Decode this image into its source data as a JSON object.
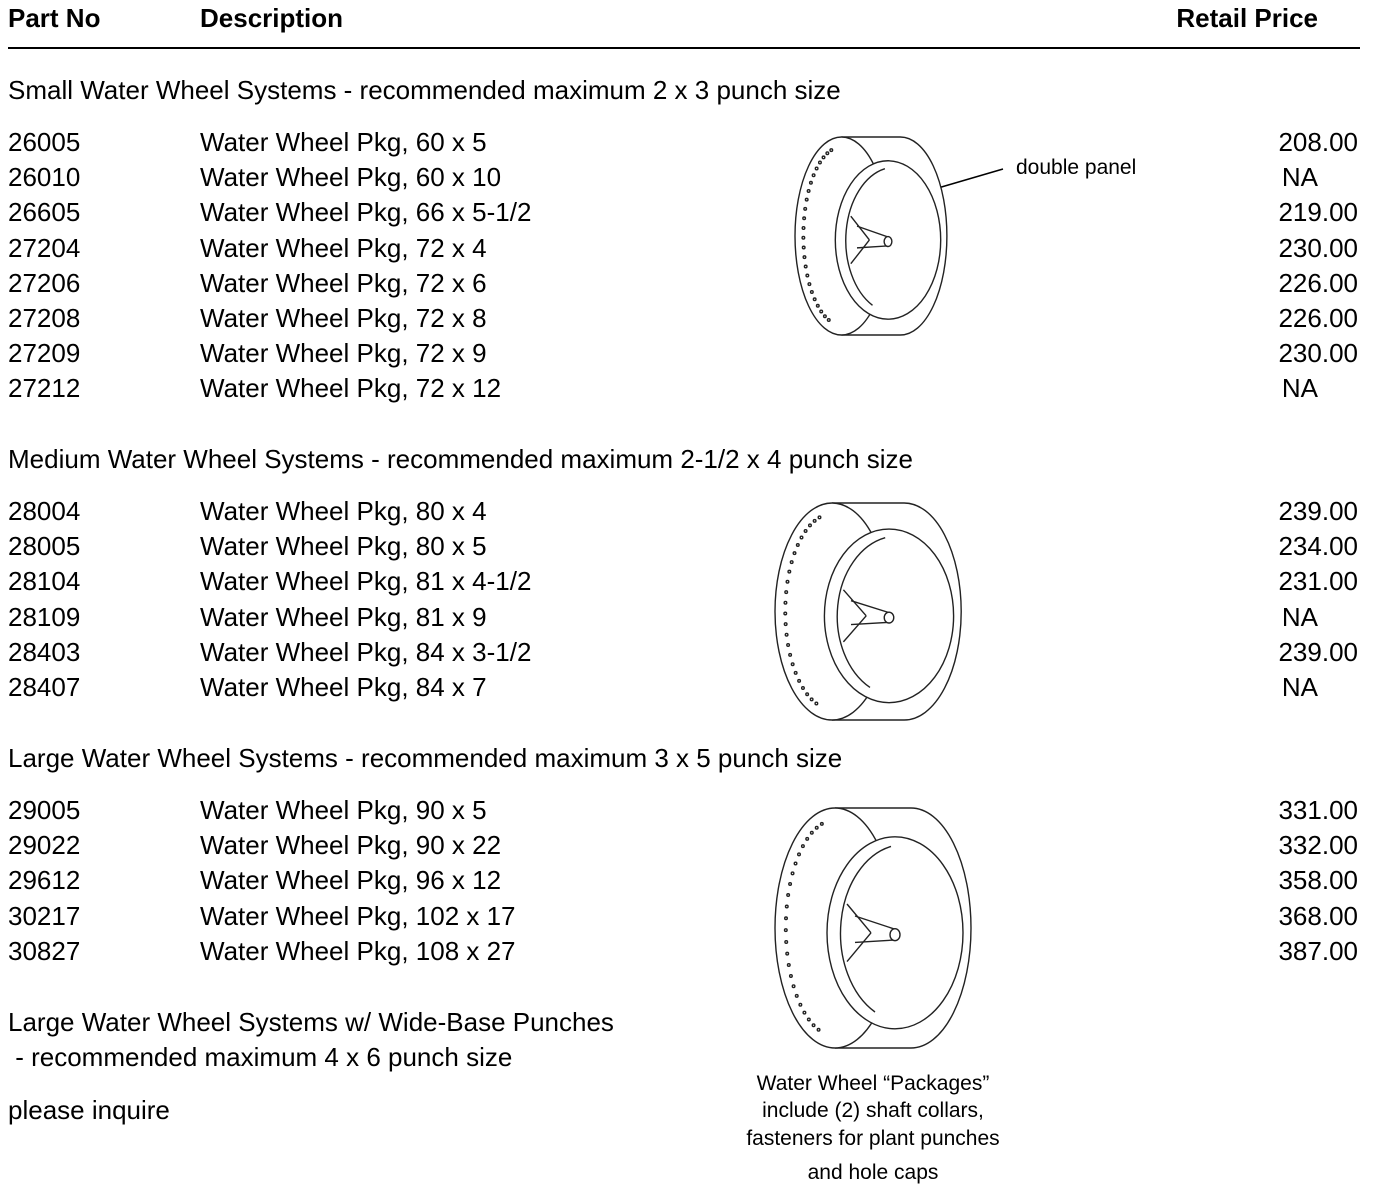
{
  "header": {
    "part_no": "Part No",
    "description": "Description",
    "retail_price": "Retail Price"
  },
  "sections": [
    {
      "title": "Small Water Wheel Systems - recommended maximum 2 x 3 punch size",
      "rows": [
        [
          "26005",
          "Water Wheel Pkg, 60 x 5",
          "208.00"
        ],
        [
          "26010",
          "Water Wheel Pkg, 60 x 10",
          "NA"
        ],
        [
          "26605",
          "Water Wheel Pkg, 66 x 5-1/2",
          "219.00"
        ],
        [
          "27204",
          "Water Wheel Pkg, 72 x 4",
          "230.00"
        ],
        [
          "27206",
          "Water Wheel Pkg, 72 x 6",
          "226.00"
        ],
        [
          "27208",
          "Water Wheel Pkg, 72 x 8",
          "226.00"
        ],
        [
          "27209",
          "Water Wheel Pkg, 72 x 9",
          "230.00"
        ],
        [
          "27212",
          "Water Wheel Pkg, 72 x 12",
          "NA"
        ]
      ]
    },
    {
      "title": "Medium Water Wheel Systems - recommended maximum 2-1/2 x 4 punch size",
      "rows": [
        [
          "28004",
          "Water Wheel Pkg, 80 x 4",
          "239.00"
        ],
        [
          "28005",
          "Water Wheel Pkg, 80 x 5",
          "234.00"
        ],
        [
          "28104",
          "Water Wheel Pkg, 81 x 4-1/2",
          "231.00"
        ],
        [
          "28109",
          "Water Wheel Pkg, 81 x 9",
          "NA"
        ],
        [
          "28403",
          "Water Wheel Pkg, 84 x 3-1/2",
          "239.00"
        ],
        [
          "28407",
          "Water Wheel Pkg, 84 x 7",
          "NA"
        ]
      ]
    },
    {
      "title": "Large Water Wheel Systems - recommended maximum 3 x 5 punch size",
      "rows": [
        [
          "29005",
          "Water Wheel Pkg, 90 x 5",
          "331.00"
        ],
        [
          "29022",
          "Water Wheel Pkg, 90 x 22",
          "332.00"
        ],
        [
          "29612",
          "Water Wheel Pkg, 96 x 12",
          "358.00"
        ],
        [
          "30217",
          "Water Wheel Pkg, 102 x 17",
          "368.00"
        ],
        [
          "30827",
          "Water Wheel Pkg, 108 x 27",
          "387.00"
        ]
      ]
    }
  ],
  "wide_base": {
    "title_lines": [
      "Large Water Wheel Systems w/ Wide-Base Punches",
      " - recommended maximum 4 x 6 punch size"
    ],
    "note": "please inquire"
  },
  "annotation": "double panel",
  "caption_lines": [
    "Water Wheel “Packages”",
    "include (2) shaft collars,",
    "fasteners for plant punches",
    "and hole caps"
  ]
}
